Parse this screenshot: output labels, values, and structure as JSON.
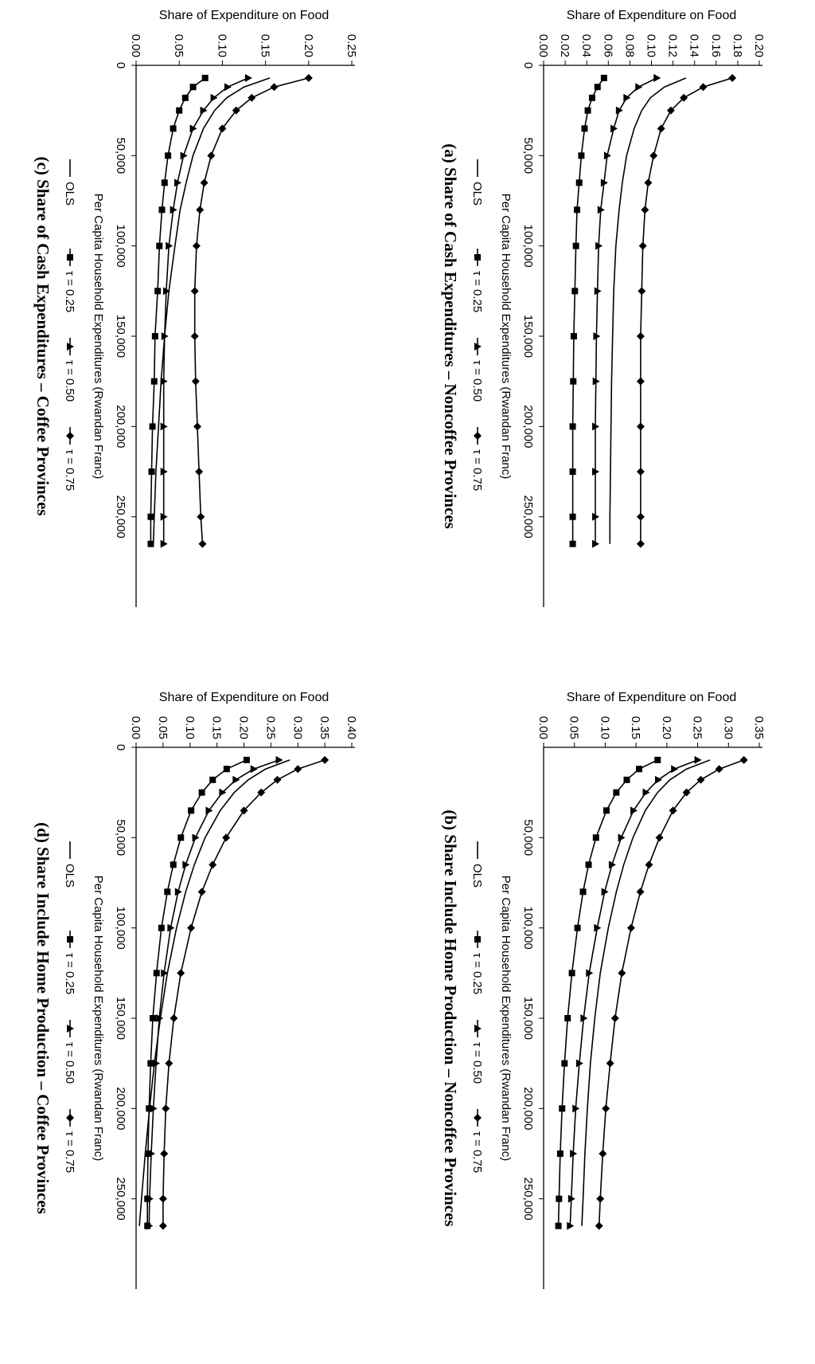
{
  "figure": {
    "panels": [
      {
        "id": "a",
        "title": "(a) Share of Cash Expenditures – Noncoffee Provinces"
      },
      {
        "id": "b",
        "title": "(b) Share Include Home Production – Noncoffee Provinces"
      },
      {
        "id": "c",
        "title": "(c) Share of Cash Expenditures – Coffee Provinces"
      },
      {
        "id": "d",
        "title": "(d) Share Include Home Production – Coffee Provinces"
      }
    ]
  },
  "chart_data": [
    {
      "id": "a",
      "type": "line",
      "title": "(a) Share of Cash Expenditures – Noncoffee Provinces",
      "xlabel": "Per Capita Household Expenditures (Rwandan Franc)",
      "ylabel": "Share of Expenditure on Food",
      "xlim": [
        0,
        300000
      ],
      "ylim": [
        0,
        0.2
      ],
      "xticks": [
        0,
        50000,
        100000,
        150000,
        200000,
        250000
      ],
      "xtick_labels": [
        "0",
        "50,000",
        "100,000",
        "150,000",
        "200,000",
        "250,000"
      ],
      "yticks": [
        0,
        0.02,
        0.04,
        0.06,
        0.08,
        0.1,
        0.12,
        0.14,
        0.16,
        0.18,
        0.2
      ],
      "ytick_labels": [
        "0.00",
        "0.02",
        "0.04",
        "0.06",
        "0.08",
        "0.10",
        "0.12",
        "0.14",
        "0.16",
        "0.18",
        "0.20"
      ],
      "x": [
        7000,
        12000,
        18000,
        25000,
        35000,
        50000,
        65000,
        80000,
        100000,
        125000,
        150000,
        175000,
        200000,
        225000,
        250000,
        265000
      ],
      "series": [
        {
          "name": "OLS",
          "marker": "none",
          "values": [
            0.132,
            0.112,
            0.099,
            0.091,
            0.084,
            0.077,
            0.073,
            0.07,
            0.067,
            0.065,
            0.064,
            0.063,
            0.0625,
            0.062,
            0.0615,
            0.0615
          ]
        },
        {
          "name": "τ = 0.25",
          "marker": "square",
          "values": [
            0.056,
            0.05,
            0.045,
            0.041,
            0.038,
            0.035,
            0.033,
            0.031,
            0.03,
            0.029,
            0.028,
            0.0275,
            0.027,
            0.027,
            0.027,
            0.027
          ]
        },
        {
          "name": "τ = 0.50",
          "marker": "triangle",
          "values": [
            0.105,
            0.088,
            0.077,
            0.07,
            0.065,
            0.059,
            0.056,
            0.053,
            0.051,
            0.05,
            0.049,
            0.0485,
            0.048,
            0.048,
            0.048,
            0.048
          ]
        },
        {
          "name": "τ = 0.75",
          "marker": "diamond",
          "values": [
            0.175,
            0.148,
            0.13,
            0.118,
            0.109,
            0.102,
            0.097,
            0.094,
            0.092,
            0.091,
            0.09,
            0.09,
            0.09,
            0.09,
            0.09,
            0.09
          ]
        }
      ]
    },
    {
      "id": "b",
      "type": "line",
      "title": "(b) Share Include Home Production – Noncoffee Provinces",
      "xlabel": "Per Capita Household Expenditures (Rwandan Franc)",
      "ylabel": "Share of Expenditure on Food",
      "xlim": [
        0,
        300000
      ],
      "ylim": [
        0,
        0.35
      ],
      "xticks": [
        50000,
        100000,
        150000,
        200000,
        250000
      ],
      "xtick_labels": [
        "50,000",
        "100,000",
        "150,000",
        "200,000",
        "250,000"
      ],
      "yticks": [
        0,
        0.05,
        0.1,
        0.15,
        0.2,
        0.25,
        0.3,
        0.35
      ],
      "ytick_labels": [
        "0.00",
        "0.05",
        "0.10",
        "0.15",
        "0.20",
        "0.25",
        "0.30",
        "0.35"
      ],
      "x": [
        7000,
        12000,
        18000,
        25000,
        35000,
        50000,
        65000,
        80000,
        100000,
        125000,
        150000,
        175000,
        200000,
        225000,
        250000,
        265000
      ],
      "series": [
        {
          "name": "OLS",
          "marker": "none",
          "values": [
            0.27,
            0.232,
            0.205,
            0.185,
            0.165,
            0.145,
            0.13,
            0.118,
            0.105,
            0.092,
            0.083,
            0.076,
            0.071,
            0.067,
            0.064,
            0.062
          ]
        },
        {
          "name": "τ = 0.25",
          "marker": "square",
          "values": [
            0.185,
            0.155,
            0.135,
            0.118,
            0.102,
            0.085,
            0.073,
            0.064,
            0.055,
            0.046,
            0.039,
            0.034,
            0.03,
            0.027,
            0.025,
            0.024
          ]
        },
        {
          "name": "τ = 0.50",
          "marker": "triangle",
          "values": [
            0.25,
            0.212,
            0.186,
            0.166,
            0.146,
            0.126,
            0.111,
            0.099,
            0.087,
            0.074,
            0.065,
            0.058,
            0.052,
            0.048,
            0.045,
            0.043
          ]
        },
        {
          "name": "τ = 0.75",
          "marker": "diamond",
          "values": [
            0.325,
            0.285,
            0.255,
            0.232,
            0.21,
            0.188,
            0.171,
            0.157,
            0.142,
            0.127,
            0.116,
            0.108,
            0.101,
            0.096,
            0.092,
            0.09
          ]
        }
      ]
    },
    {
      "id": "c",
      "type": "line",
      "title": "(c) Share of Cash Expenditures – Coffee Provinces",
      "xlabel": "Per Capita Household Expenditures (Rwandan Franc)",
      "ylabel": "Share of Expenditure on Food",
      "xlim": [
        0,
        300000
      ],
      "ylim": [
        0,
        0.25
      ],
      "xticks": [
        0,
        50000,
        100000,
        150000,
        200000,
        250000
      ],
      "xtick_labels": [
        "0",
        "50,000",
        "100,000",
        "150,000",
        "200,000",
        "250,000"
      ],
      "yticks": [
        0,
        0.05,
        0.1,
        0.15,
        0.2,
        0.25
      ],
      "ytick_labels": [
        "0.00",
        "0.05",
        "0.10",
        "0.15",
        "0.20",
        "0.25"
      ],
      "x": [
        7000,
        12000,
        18000,
        25000,
        35000,
        50000,
        65000,
        80000,
        100000,
        125000,
        150000,
        175000,
        200000,
        225000,
        250000,
        265000
      ],
      "series": [
        {
          "name": "OLS",
          "marker": "none",
          "values": [
            0.155,
            0.125,
            0.105,
            0.091,
            0.078,
            0.066,
            0.058,
            0.051,
            0.045,
            0.038,
            0.033,
            0.029,
            0.026,
            0.023,
            0.021,
            0.02
          ]
        },
        {
          "name": "τ = 0.25",
          "marker": "square",
          "values": [
            0.08,
            0.066,
            0.057,
            0.05,
            0.043,
            0.037,
            0.033,
            0.03,
            0.027,
            0.025,
            0.022,
            0.021,
            0.019,
            0.018,
            0.017,
            0.017
          ]
        },
        {
          "name": "τ = 0.50",
          "marker": "triangle",
          "values": [
            0.13,
            0.106,
            0.09,
            0.078,
            0.066,
            0.055,
            0.048,
            0.043,
            0.038,
            0.035,
            0.033,
            0.032,
            0.032,
            0.032,
            0.032,
            0.032
          ]
        },
        {
          "name": "τ = 0.75",
          "marker": "diamond",
          "values": [
            0.2,
            0.16,
            0.134,
            0.116,
            0.1,
            0.087,
            0.079,
            0.074,
            0.07,
            0.068,
            0.068,
            0.069,
            0.071,
            0.073,
            0.075,
            0.077
          ]
        }
      ]
    },
    {
      "id": "d",
      "type": "line",
      "title": "(d) Share Include Home Production – Coffee Provinces",
      "xlabel": "Per Capita Household Expenditures (Rwandan Franc)",
      "ylabel": "Share of Expenditure on Food",
      "xlim": [
        0,
        300000
      ],
      "ylim": [
        0,
        0.4
      ],
      "xticks": [
        0,
        50000,
        100000,
        150000,
        200000,
        250000
      ],
      "xtick_labels": [
        "0",
        "50,000",
        "100,000",
        "150,000",
        "200,000",
        "250,000"
      ],
      "yticks": [
        0,
        0.05,
        0.1,
        0.15,
        0.2,
        0.25,
        0.3,
        0.35,
        0.4
      ],
      "ytick_labels": [
        "0.00",
        "0.05",
        "0.10",
        "0.15",
        "0.20",
        "0.25",
        "0.30",
        "0.35",
        "0.40"
      ],
      "x": [
        7000,
        12000,
        18000,
        25000,
        35000,
        50000,
        65000,
        80000,
        100000,
        125000,
        150000,
        175000,
        200000,
        225000,
        250000,
        265000
      ],
      "series": [
        {
          "name": "OLS",
          "marker": "none",
          "values": [
            0.285,
            0.24,
            0.208,
            0.182,
            0.156,
            0.128,
            0.108,
            0.092,
            0.075,
            0.058,
            0.045,
            0.034,
            0.025,
            0.017,
            0.01,
            0.006
          ]
        },
        {
          "name": "τ = 0.25",
          "marker": "square",
          "values": [
            0.205,
            0.168,
            0.142,
            0.122,
            0.102,
            0.083,
            0.069,
            0.058,
            0.047,
            0.038,
            0.031,
            0.027,
            0.024,
            0.022,
            0.021,
            0.021
          ]
        },
        {
          "name": "τ = 0.50",
          "marker": "triangle",
          "values": [
            0.265,
            0.218,
            0.185,
            0.16,
            0.135,
            0.11,
            0.092,
            0.078,
            0.064,
            0.052,
            0.043,
            0.037,
            0.032,
            0.028,
            0.025,
            0.024
          ]
        },
        {
          "name": "τ = 0.75",
          "marker": "diamond",
          "values": [
            0.35,
            0.3,
            0.262,
            0.232,
            0.2,
            0.167,
            0.142,
            0.122,
            0.102,
            0.083,
            0.07,
            0.061,
            0.055,
            0.052,
            0.05,
            0.05
          ]
        }
      ]
    }
  ]
}
